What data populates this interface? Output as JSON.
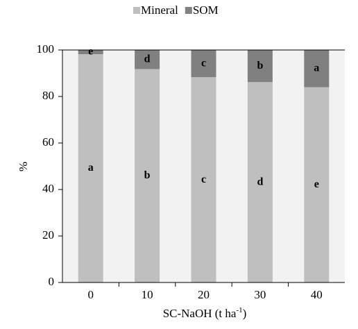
{
  "chart_data": {
    "type": "stacked-bar",
    "legend": "top",
    "categories": [
      "0",
      "10",
      "20",
      "30",
      "40"
    ],
    "series": [
      {
        "name": "Mineral",
        "color": "#bfbfbf",
        "values": [
          98.2,
          91.8,
          88.3,
          86.2,
          84
        ],
        "letters": [
          "a",
          "b",
          "c",
          "d",
          "e"
        ]
      },
      {
        "name": "SOM",
        "color": "#808080",
        "values": [
          1.8,
          8.2,
          11.7,
          13.8,
          16
        ],
        "letters": [
          "e",
          "d",
          "c",
          "b",
          "a"
        ]
      }
    ],
    "ylabel": "%",
    "xlabel": {
      "text": "SC-NaOH (t ha",
      "sup": "-1",
      "end": ")"
    },
    "ylim": [
      0,
      100
    ],
    "yticks": [
      0,
      20,
      40,
      60,
      80,
      100
    ]
  }
}
